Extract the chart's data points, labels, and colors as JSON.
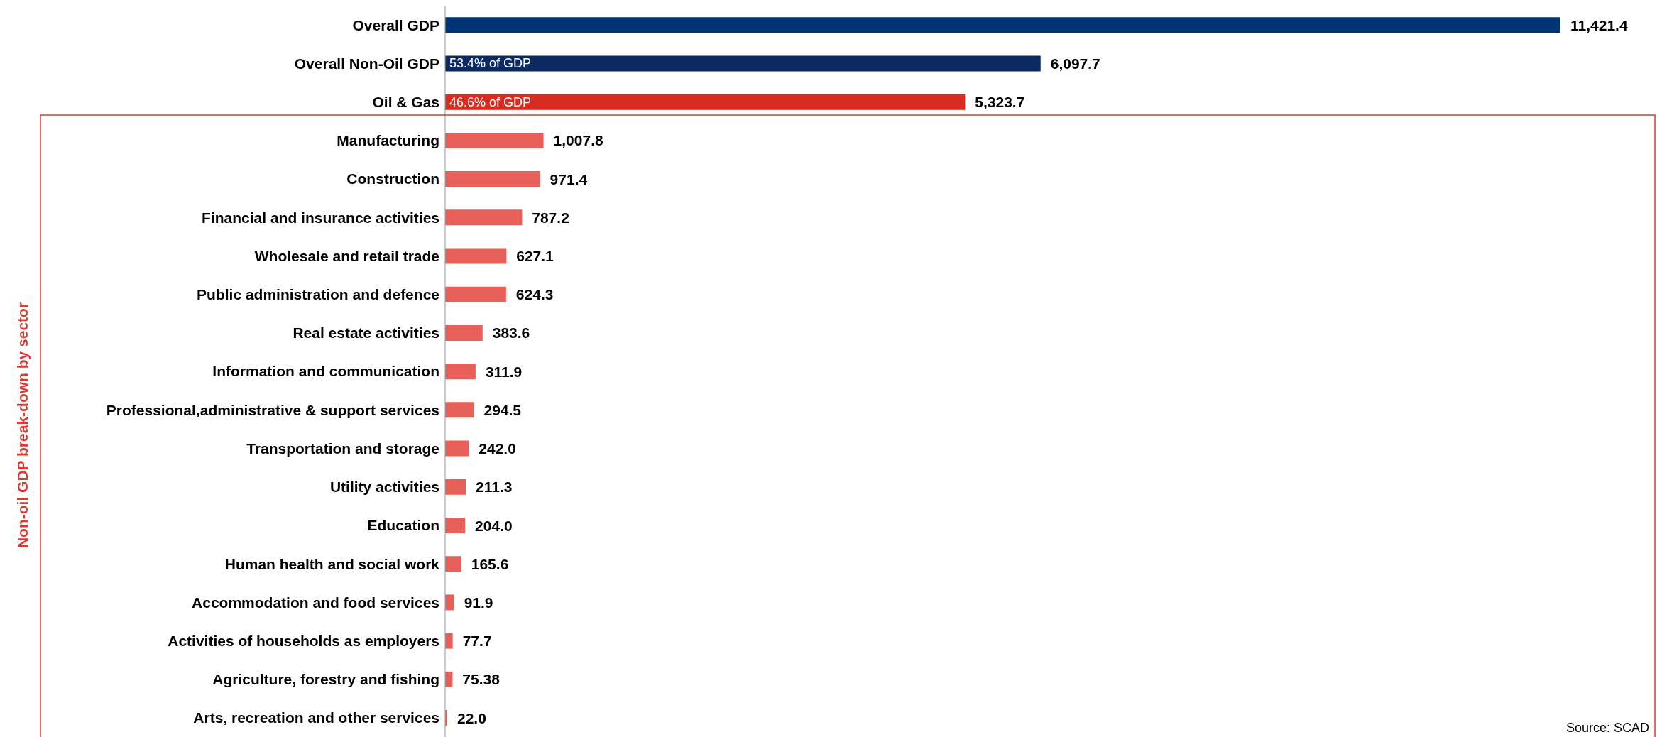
{
  "chart_data": {
    "type": "bar",
    "orientation": "horizontal",
    "categories": [
      "Overall GDP",
      "Overall Non-Oil GDP",
      "Oil & Gas",
      "Manufacturing",
      "Construction",
      "Financial and insurance activities",
      "Wholesale and retail trade",
      "Public administration and defence",
      "Real estate activities",
      "Information and communication",
      "Professional,administrative & support services",
      "Transportation and storage",
      "Utility activities",
      "Education",
      "Human health and social work",
      "Accommodation and food services",
      "Activities of households as employers",
      "Agriculture, forestry and fishing",
      "Arts, recreation and other services"
    ],
    "values": [
      11421.4,
      6097.7,
      5323.7,
      1007.8,
      971.4,
      787.2,
      627.1,
      624.3,
      383.6,
      311.9,
      294.5,
      242.0,
      211.3,
      204.0,
      165.6,
      91.9,
      77.7,
      75.38,
      22.0
    ],
    "value_labels": [
      "11,421.4",
      "6,097.7",
      "5,323.7",
      "1,007.8",
      "971.4",
      "787.2",
      "627.1",
      "624.3",
      "383.6",
      "311.9",
      "294.5",
      "242.0",
      "211.3",
      "204.0",
      "165.6",
      "91.9",
      "77.7",
      "75.38",
      "22.0"
    ],
    "colors": [
      "#003473",
      "#0b2a63",
      "#d92b20",
      "#e8605a",
      "#e8605a",
      "#e8605a",
      "#e8605a",
      "#e8605a",
      "#e8605a",
      "#e8605a",
      "#e8605a",
      "#e8605a",
      "#e8605a",
      "#e8605a",
      "#e8605a",
      "#e8605a",
      "#e8605a",
      "#e8605a",
      "#e8605a"
    ],
    "annotations": [
      {
        "text": "53.4% of GDP",
        "x": 0,
        "y": "Overall Non-Oil GDP"
      },
      {
        "text": "46.6% of GDP",
        "x": 0,
        "y": "Oil & Gas"
      },
      "Non-oil GDP break-down by sector",
      "Source: SCAD"
    ],
    "data_labels": true
  }
}
